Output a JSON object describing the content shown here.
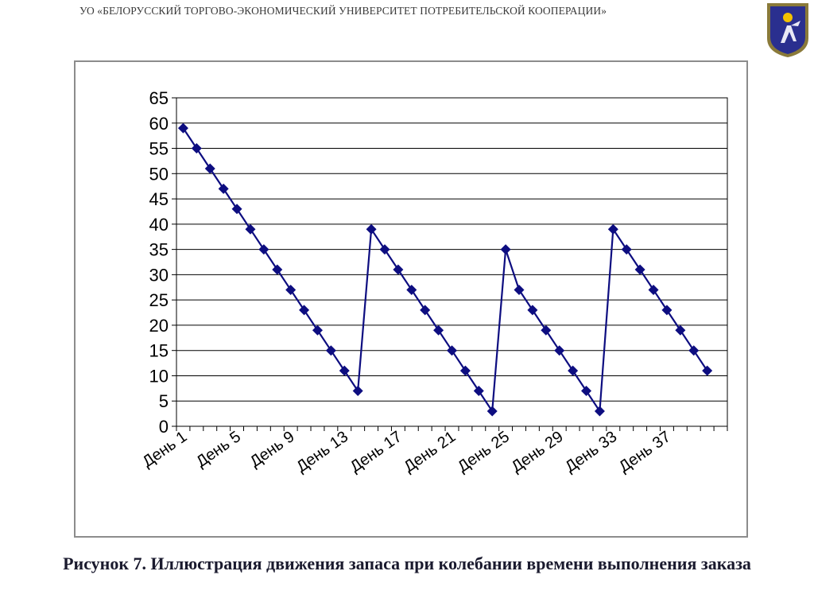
{
  "header": {
    "org": "УО «БЕЛОРУССКИЙ ТОРГОВО-ЭКОНОМИЧЕСКИЙ УНИВЕРСИТЕТ ПОТРЕБИТЕЛЬСКОЙ КООПЕРАЦИИ»"
  },
  "logo": {
    "icon": "university-crest-icon",
    "colors": {
      "field": "#2a2f8f",
      "border": "#8a7a3a",
      "accent": "#f2c200"
    }
  },
  "caption": "Рисунок 7. Иллюстрация движения запаса при колебании времени выполнения заказа",
  "colors": {
    "series": "#0d0d80",
    "grid": "#000000",
    "frame": "#8c8c8c"
  },
  "chart_data": {
    "type": "line",
    "title": "",
    "xlabel": "",
    "ylabel": "",
    "grid": true,
    "legend": "none",
    "ylim": [
      0,
      65
    ],
    "y_ticks": [
      "0",
      "5",
      "10",
      "15",
      "20",
      "25",
      "30",
      "35",
      "40",
      "45",
      "50",
      "55",
      "60",
      "65"
    ],
    "x_tick_labels": [
      "День 1",
      "День 5",
      "День 9",
      "День 13",
      "День 17",
      "День 21",
      "День 25",
      "День 29",
      "День 33",
      "День 37"
    ],
    "x_tick_days": [
      1,
      5,
      9,
      13,
      17,
      21,
      25,
      29,
      33,
      37
    ],
    "x_day_count": 41,
    "series": [
      {
        "x": [
          1,
          2,
          3,
          4,
          5,
          6,
          7,
          8,
          9,
          10,
          11,
          12,
          13,
          14,
          15,
          16,
          17,
          18,
          19,
          20,
          21,
          22,
          23,
          24,
          25,
          26,
          27,
          28,
          29,
          30,
          31,
          32,
          33,
          34,
          35,
          36,
          37,
          38,
          39,
          40
        ],
        "values": [
          59,
          55,
          51,
          47,
          43,
          39,
          35,
          31,
          27,
          23,
          19,
          15,
          11,
          7,
          39,
          35,
          31,
          27,
          23,
          19,
          15,
          11,
          7,
          3,
          35,
          27,
          23,
          19,
          15,
          11,
          7,
          3,
          39,
          35,
          31,
          27,
          23,
          19,
          15,
          11
        ]
      }
    ]
  }
}
